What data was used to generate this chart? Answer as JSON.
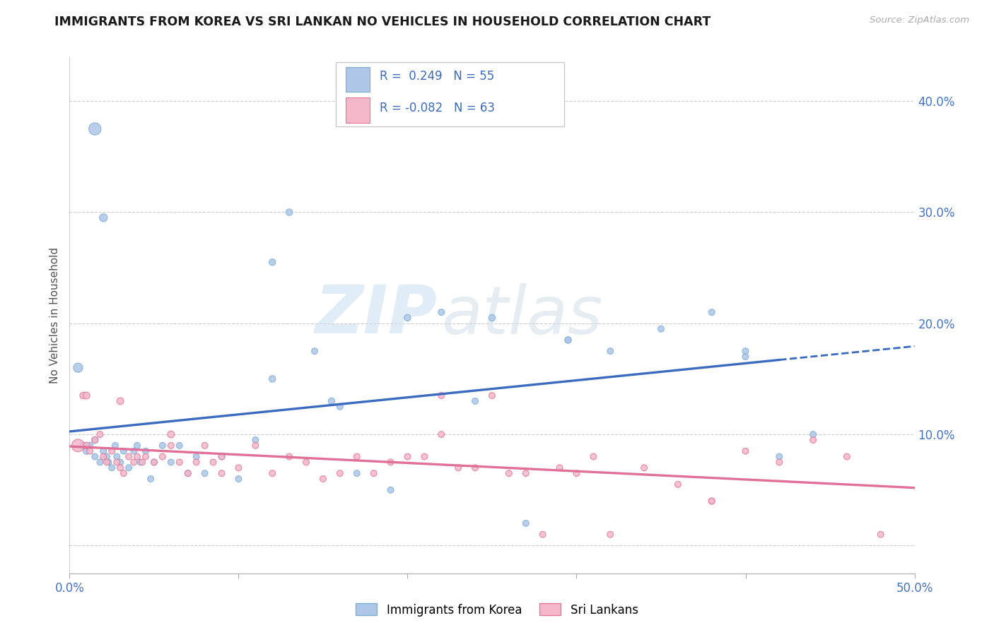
{
  "title": "IMMIGRANTS FROM KOREA VS SRI LANKAN NO VEHICLES IN HOUSEHOLD CORRELATION CHART",
  "source": "Source: ZipAtlas.com",
  "ylabel": "No Vehicles in Household",
  "xlim": [
    0.0,
    0.5
  ],
  "ylim": [
    -0.025,
    0.44
  ],
  "yticks": [
    0.0,
    0.1,
    0.2,
    0.3,
    0.4
  ],
  "ytick_labels": [
    "",
    "10.0%",
    "20.0%",
    "30.0%",
    "40.0%"
  ],
  "xticks": [
    0.0,
    0.1,
    0.2,
    0.3,
    0.4,
    0.5
  ],
  "xtick_labels": [
    "0.0%",
    "",
    "",
    "",
    "",
    "50.0%"
  ],
  "korea_color": "#aec6e8",
  "korea_edge_color": "#7bafd4",
  "srilanka_color": "#f5b8cb",
  "srilanka_edge_color": "#e07898",
  "trend_korea_color": "#3a6bbf",
  "trend_srilanka_color": "#e07098",
  "korea_R": "0.249",
  "korea_N": "55",
  "srilanka_R": "-0.082",
  "srilanka_N": "63",
  "legend_korea_label": "Immigrants from Korea",
  "legend_srilanka_label": "Sri Lankans",
  "watermark_zip": "ZIP",
  "watermark_atlas": "atlas",
  "korea_scatter_x": [
    0.005,
    0.008,
    0.01,
    0.012,
    0.015,
    0.015,
    0.018,
    0.02,
    0.022,
    0.023,
    0.025,
    0.027,
    0.028,
    0.03,
    0.032,
    0.035,
    0.038,
    0.04,
    0.042,
    0.045,
    0.048,
    0.05,
    0.055,
    0.06,
    0.065,
    0.07,
    0.075,
    0.08,
    0.09,
    0.1,
    0.11,
    0.12,
    0.13,
    0.145,
    0.155,
    0.16,
    0.17,
    0.19,
    0.2,
    0.22,
    0.24,
    0.25,
    0.27,
    0.295,
    0.32,
    0.35,
    0.38,
    0.4,
    0.42,
    0.44,
    0.015,
    0.02,
    0.12,
    0.295,
    0.4
  ],
  "korea_scatter_y": [
    0.16,
    0.09,
    0.085,
    0.09,
    0.095,
    0.08,
    0.075,
    0.085,
    0.08,
    0.075,
    0.07,
    0.09,
    0.08,
    0.075,
    0.085,
    0.07,
    0.085,
    0.09,
    0.075,
    0.085,
    0.06,
    0.075,
    0.09,
    0.075,
    0.09,
    0.065,
    0.08,
    0.065,
    0.08,
    0.06,
    0.095,
    0.255,
    0.3,
    0.175,
    0.13,
    0.125,
    0.065,
    0.05,
    0.205,
    0.21,
    0.13,
    0.205,
    0.02,
    0.185,
    0.175,
    0.195,
    0.21,
    0.17,
    0.08,
    0.1,
    0.375,
    0.295,
    0.15,
    0.185,
    0.175
  ],
  "korea_scatter_size": [
    90,
    45,
    45,
    45,
    45,
    40,
    40,
    40,
    40,
    40,
    40,
    40,
    40,
    40,
    40,
    40,
    40,
    40,
    40,
    40,
    40,
    40,
    40,
    40,
    40,
    40,
    40,
    40,
    40,
    40,
    40,
    45,
    45,
    40,
    45,
    40,
    40,
    40,
    45,
    40,
    40,
    45,
    40,
    40,
    40,
    40,
    40,
    40,
    40,
    40,
    155,
    65,
    45,
    45,
    40
  ],
  "srilanka_scatter_x": [
    0.005,
    0.008,
    0.01,
    0.012,
    0.015,
    0.018,
    0.02,
    0.022,
    0.025,
    0.028,
    0.03,
    0.032,
    0.035,
    0.038,
    0.04,
    0.043,
    0.045,
    0.05,
    0.055,
    0.06,
    0.065,
    0.07,
    0.075,
    0.08,
    0.085,
    0.09,
    0.1,
    0.11,
    0.12,
    0.13,
    0.14,
    0.15,
    0.16,
    0.17,
    0.18,
    0.19,
    0.2,
    0.21,
    0.22,
    0.23,
    0.24,
    0.25,
    0.26,
    0.27,
    0.28,
    0.29,
    0.3,
    0.31,
    0.32,
    0.34,
    0.36,
    0.38,
    0.4,
    0.42,
    0.44,
    0.46,
    0.48,
    0.01,
    0.03,
    0.06,
    0.09,
    0.22,
    0.38
  ],
  "srilanka_scatter_y": [
    0.09,
    0.135,
    0.09,
    0.085,
    0.095,
    0.1,
    0.08,
    0.075,
    0.085,
    0.075,
    0.07,
    0.065,
    0.08,
    0.075,
    0.08,
    0.075,
    0.08,
    0.075,
    0.08,
    0.09,
    0.075,
    0.065,
    0.075,
    0.09,
    0.075,
    0.08,
    0.07,
    0.09,
    0.065,
    0.08,
    0.075,
    0.06,
    0.065,
    0.08,
    0.065,
    0.075,
    0.08,
    0.08,
    0.135,
    0.07,
    0.07,
    0.135,
    0.065,
    0.065,
    0.01,
    0.07,
    0.065,
    0.08,
    0.01,
    0.07,
    0.055,
    0.04,
    0.085,
    0.075,
    0.095,
    0.08,
    0.01,
    0.135,
    0.13,
    0.1,
    0.065,
    0.1,
    0.04
  ],
  "srilanka_scatter_size": [
    165,
    45,
    45,
    40,
    40,
    40,
    40,
    40,
    40,
    40,
    40,
    40,
    40,
    40,
    40,
    40,
    40,
    40,
    40,
    40,
    40,
    40,
    40,
    40,
    40,
    40,
    40,
    40,
    40,
    40,
    40,
    40,
    40,
    40,
    40,
    40,
    40,
    40,
    40,
    40,
    40,
    40,
    40,
    40,
    40,
    40,
    40,
    40,
    40,
    40,
    40,
    40,
    40,
    40,
    40,
    40,
    40,
    50,
    50,
    50,
    40,
    40,
    40
  ],
  "trend_korea_start_x": 0.0,
  "trend_korea_solid_end_x": 0.42,
  "trend_korea_dash_end_x": 0.5,
  "trend_srilanka_start_x": 0.0,
  "trend_srilanka_end_x": 0.5
}
